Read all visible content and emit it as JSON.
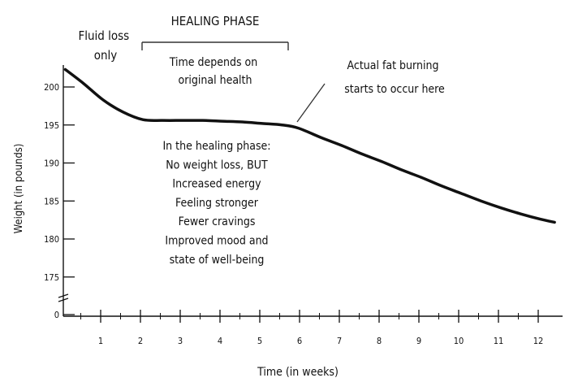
{
  "chart_data": {
    "type": "line",
    "xlabel": "Time (in weeks)",
    "ylabel": "Weight (in pounds)",
    "x_ticks": [
      "1",
      "2",
      "3",
      "4",
      "5",
      "6",
      "7",
      "8",
      "9",
      "10",
      "11",
      "12"
    ],
    "y_ticks": [
      "0",
      "175",
      "180",
      "185",
      "190",
      "195",
      "200"
    ],
    "y_tick_values": [
      170,
      175,
      180,
      185,
      190,
      195,
      200
    ],
    "y_axis_break": "0 shown at base; axis break between 0 and 175",
    "xlim": [
      0,
      12.6
    ],
    "ylim": [
      170,
      203
    ],
    "grid": false,
    "series": [
      {
        "x": [
          0.05,
          0.5,
          1.0,
          1.5,
          2.0,
          2.5,
          3.0,
          3.5,
          4.0,
          4.5,
          5.0,
          5.5,
          5.9,
          6.5,
          7.0,
          7.5,
          8.0,
          8.5,
          9.0,
          9.5,
          10.0,
          10.5,
          11.0,
          11.5,
          12.0,
          12.35
        ],
        "y": [
          202.3,
          200.5,
          198.3,
          196.7,
          195.7,
          195.6,
          195.6,
          195.6,
          195.5,
          195.4,
          195.2,
          195.0,
          194.6,
          193.3,
          192.3,
          191.2,
          190.2,
          189.1,
          188.1,
          187.0,
          186.0,
          185.0,
          184.1,
          183.3,
          182.6,
          182.2
        ]
      }
    ],
    "annotations": {
      "fluid_loss": "Fluid loss only",
      "healing_phase": "HEALING PHASE",
      "time_depends_line1": "Time depends on",
      "time_depends_line2": "original health",
      "fat_burning_line1": "Actual fat burning",
      "fat_burning_line2": "starts to occur here",
      "healing_notes": [
        "In the healing phase:",
        "No weight loss, BUT",
        "Increased energy",
        "Feeling stronger",
        "Fewer cravings",
        "Improved mood and",
        "state of well-being"
      ]
    }
  }
}
